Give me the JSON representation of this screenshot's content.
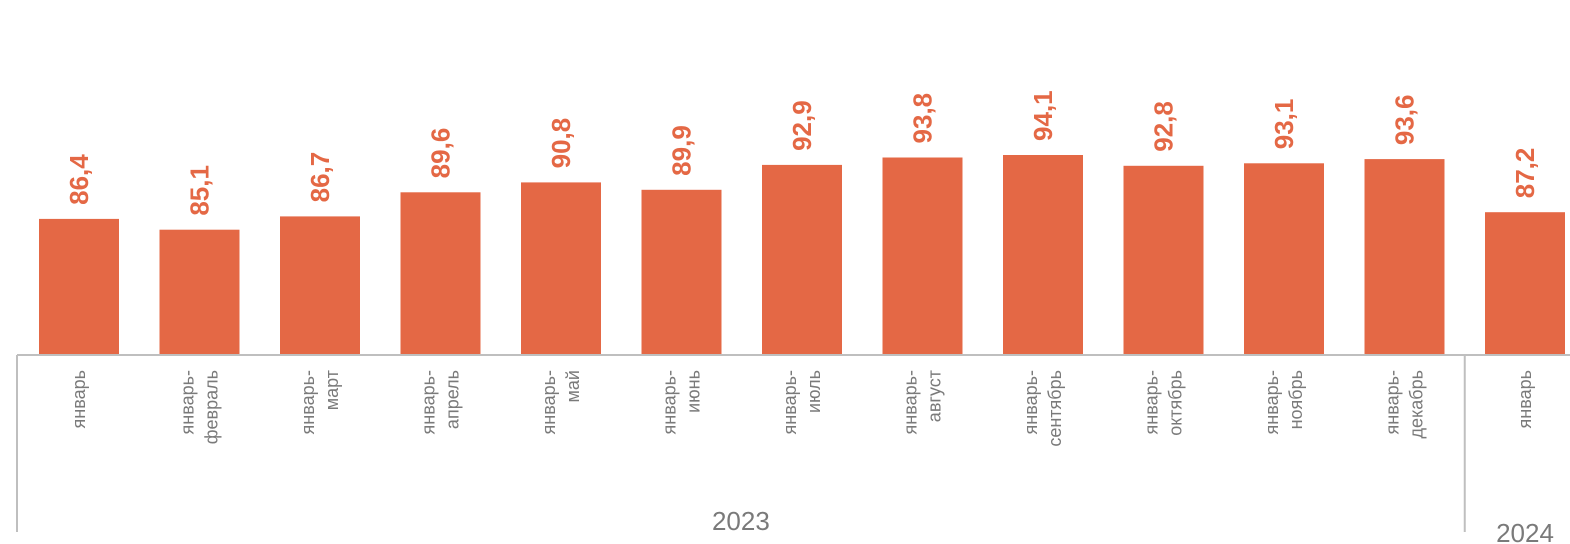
{
  "colors": {
    "bar": "#E46845",
    "label": "#E46845",
    "axis": "#BFBFBF",
    "text": "#7A7A7A"
  },
  "chart_data": {
    "type": "bar",
    "categories": [
      [
        "январь"
      ],
      [
        "январь-",
        "февраль"
      ],
      [
        "январь-",
        "март"
      ],
      [
        "январь-",
        "апрель"
      ],
      [
        "январь-",
        "май"
      ],
      [
        "январь-",
        "июнь"
      ],
      [
        "январь-",
        "июль"
      ],
      [
        "январь-",
        "август"
      ],
      [
        "январь-",
        "сентябрь"
      ],
      [
        "январь-",
        "октябрь"
      ],
      [
        "январь-",
        "ноябрь"
      ],
      [
        "январь-",
        "декабрь"
      ],
      [
        "январь"
      ]
    ],
    "values": [
      86.4,
      85.1,
      86.7,
      89.6,
      90.8,
      89.9,
      92.9,
      93.8,
      94.1,
      92.8,
      93.1,
      93.6,
      87.2
    ],
    "value_labels": [
      "86,4",
      "85,1",
      "86,7",
      "89,6",
      "90,8",
      "89,9",
      "92,9",
      "93,8",
      "94,1",
      "92,8",
      "93,1",
      "93,6",
      "87,2"
    ],
    "groups": [
      {
        "label": "2023",
        "count": 12
      },
      {
        "label": "2024",
        "count": 1
      }
    ],
    "ylim": [
      70,
      100
    ],
    "grid": false,
    "title": "",
    "xlabel": "",
    "ylabel": ""
  }
}
